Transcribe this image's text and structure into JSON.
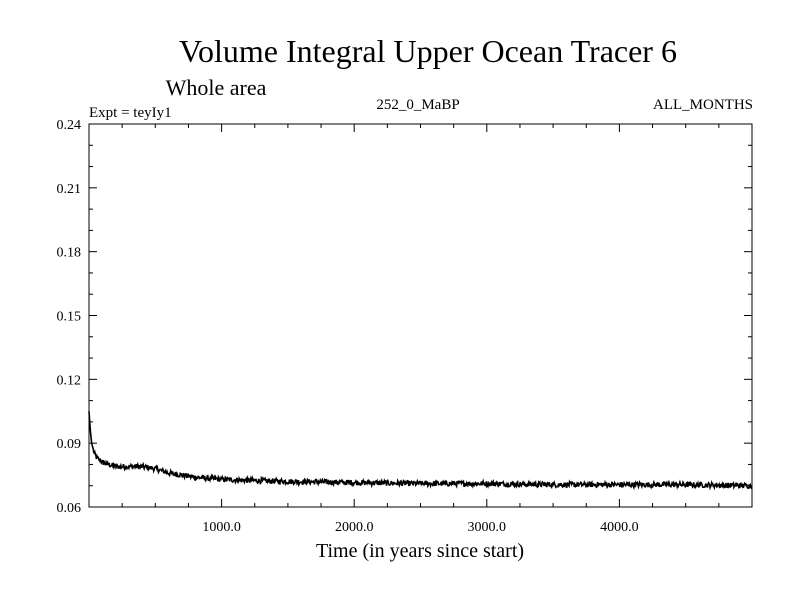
{
  "chart_data": {
    "type": "line",
    "title": "Volume Integral Upper Ocean Tracer 6",
    "subtitle": "Whole area",
    "experiment": "Expt = teyIy1",
    "period": "252_0_MaBP",
    "season": "ALL_MONTHS",
    "xlabel": "Time (in years since start)",
    "ylabel": "",
    "xlim": [
      0,
      5000
    ],
    "ylim": [
      0.06,
      0.24
    ],
    "x_ticks": [
      1000,
      2000,
      3000,
      4000
    ],
    "x_tick_labels": [
      "1000.0",
      "2000.0",
      "3000.0",
      "4000.0"
    ],
    "y_ticks": [
      0.06,
      0.09,
      0.12,
      0.15,
      0.18,
      0.21,
      0.24
    ],
    "y_tick_labels": [
      "0.06",
      "0.09",
      "0.12",
      "0.15",
      "0.18",
      "0.21",
      "0.24"
    ],
    "grid": false,
    "series": [
      {
        "color": "#000000",
        "x": [
          0,
          10,
          20,
          40,
          60,
          80,
          100,
          150,
          200,
          300,
          400,
          500,
          600,
          700,
          800,
          1000,
          1200,
          1500,
          2000,
          2500,
          3000,
          3500,
          4000,
          4500,
          5000
        ],
        "y": [
          0.105,
          0.096,
          0.09,
          0.085,
          0.083,
          0.082,
          0.081,
          0.08,
          0.079,
          0.079,
          0.079,
          0.078,
          0.076,
          0.075,
          0.074,
          0.073,
          0.0725,
          0.072,
          0.0715,
          0.071,
          0.071,
          0.0705,
          0.0705,
          0.0705,
          0.07
        ]
      }
    ]
  }
}
